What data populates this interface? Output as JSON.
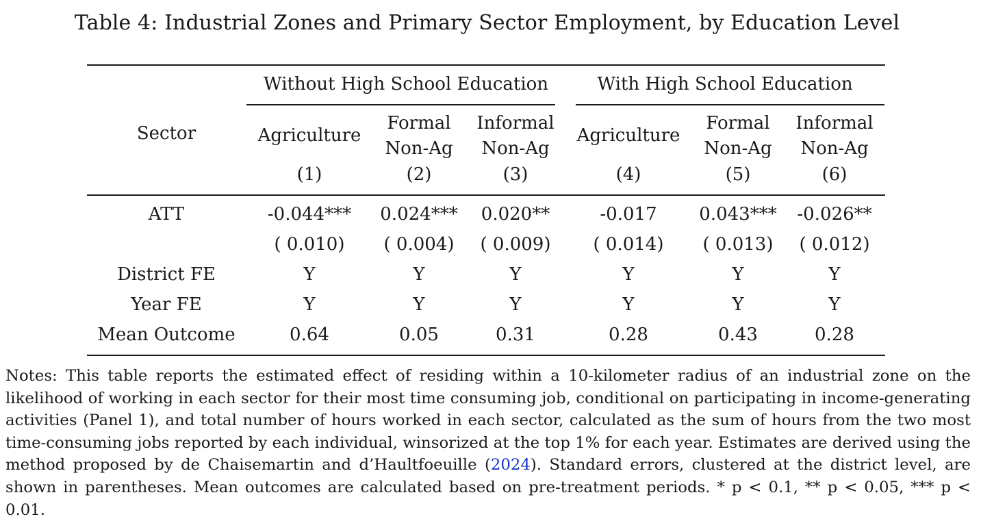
{
  "caption": "Table 4: Industrial Zones and Primary Sector Employment, by Education Level",
  "groups": [
    "Without High School Education",
    "With High School Education"
  ],
  "stub_header": "Sector",
  "columns": [
    {
      "l1": "Agriculture",
      "l2": "",
      "num": "(1)"
    },
    {
      "l1": "Formal",
      "l2": "Non-Ag",
      "num": "(2)"
    },
    {
      "l1": "Informal",
      "l2": "Non-Ag",
      "num": "(3)"
    },
    {
      "l1": "Agriculture",
      "l2": "",
      "num": "(4)"
    },
    {
      "l1": "Formal",
      "l2": "Non-Ag",
      "num": "(5)"
    },
    {
      "l1": "Informal",
      "l2": "Non-Ag",
      "num": "(6)"
    }
  ],
  "rows": [
    {
      "label": "ATT",
      "values": [
        "-0.044***",
        "0.024***",
        "0.020**",
        "-0.017",
        "0.043***",
        "-0.026**"
      ]
    },
    {
      "label": "",
      "values": [
        "( 0.010)",
        "( 0.004)",
        "( 0.009)",
        "( 0.014)",
        "( 0.013)",
        "( 0.012)"
      ]
    },
    {
      "label": "District FE",
      "values": [
        "Y",
        "Y",
        "Y",
        "Y",
        "Y",
        "Y"
      ]
    },
    {
      "label": "Year FE",
      "values": [
        "Y",
        "Y",
        "Y",
        "Y",
        "Y",
        "Y"
      ]
    },
    {
      "label": "Mean Outcome",
      "values": [
        "0.64",
        "0.05",
        "0.31",
        "0.28",
        "0.43",
        "0.28"
      ]
    }
  ],
  "notes": {
    "before": "Notes: This table reports the estimated effect of residing within a 10-kilometer radius of an industrial zone on the likelihood of working in each sector for their most time consuming job, conditional on participating in income-generating activities (Panel 1), and total number of hours worked in each sector, calculated as the sum of hours from the two most time-consuming jobs reported by each individual, winsorized at the top 1% for each year. Estimates are derived using the method proposed by de Chaisemartin and d’Haultfoeuille (",
    "citation": "2024",
    "after": "). Standard errors, clustered at the district level, are shown in parentheses. Mean outcomes are calculated based on pre-treatment periods. * p < 0.1, ** p < 0.05, *** p < 0.01."
  }
}
